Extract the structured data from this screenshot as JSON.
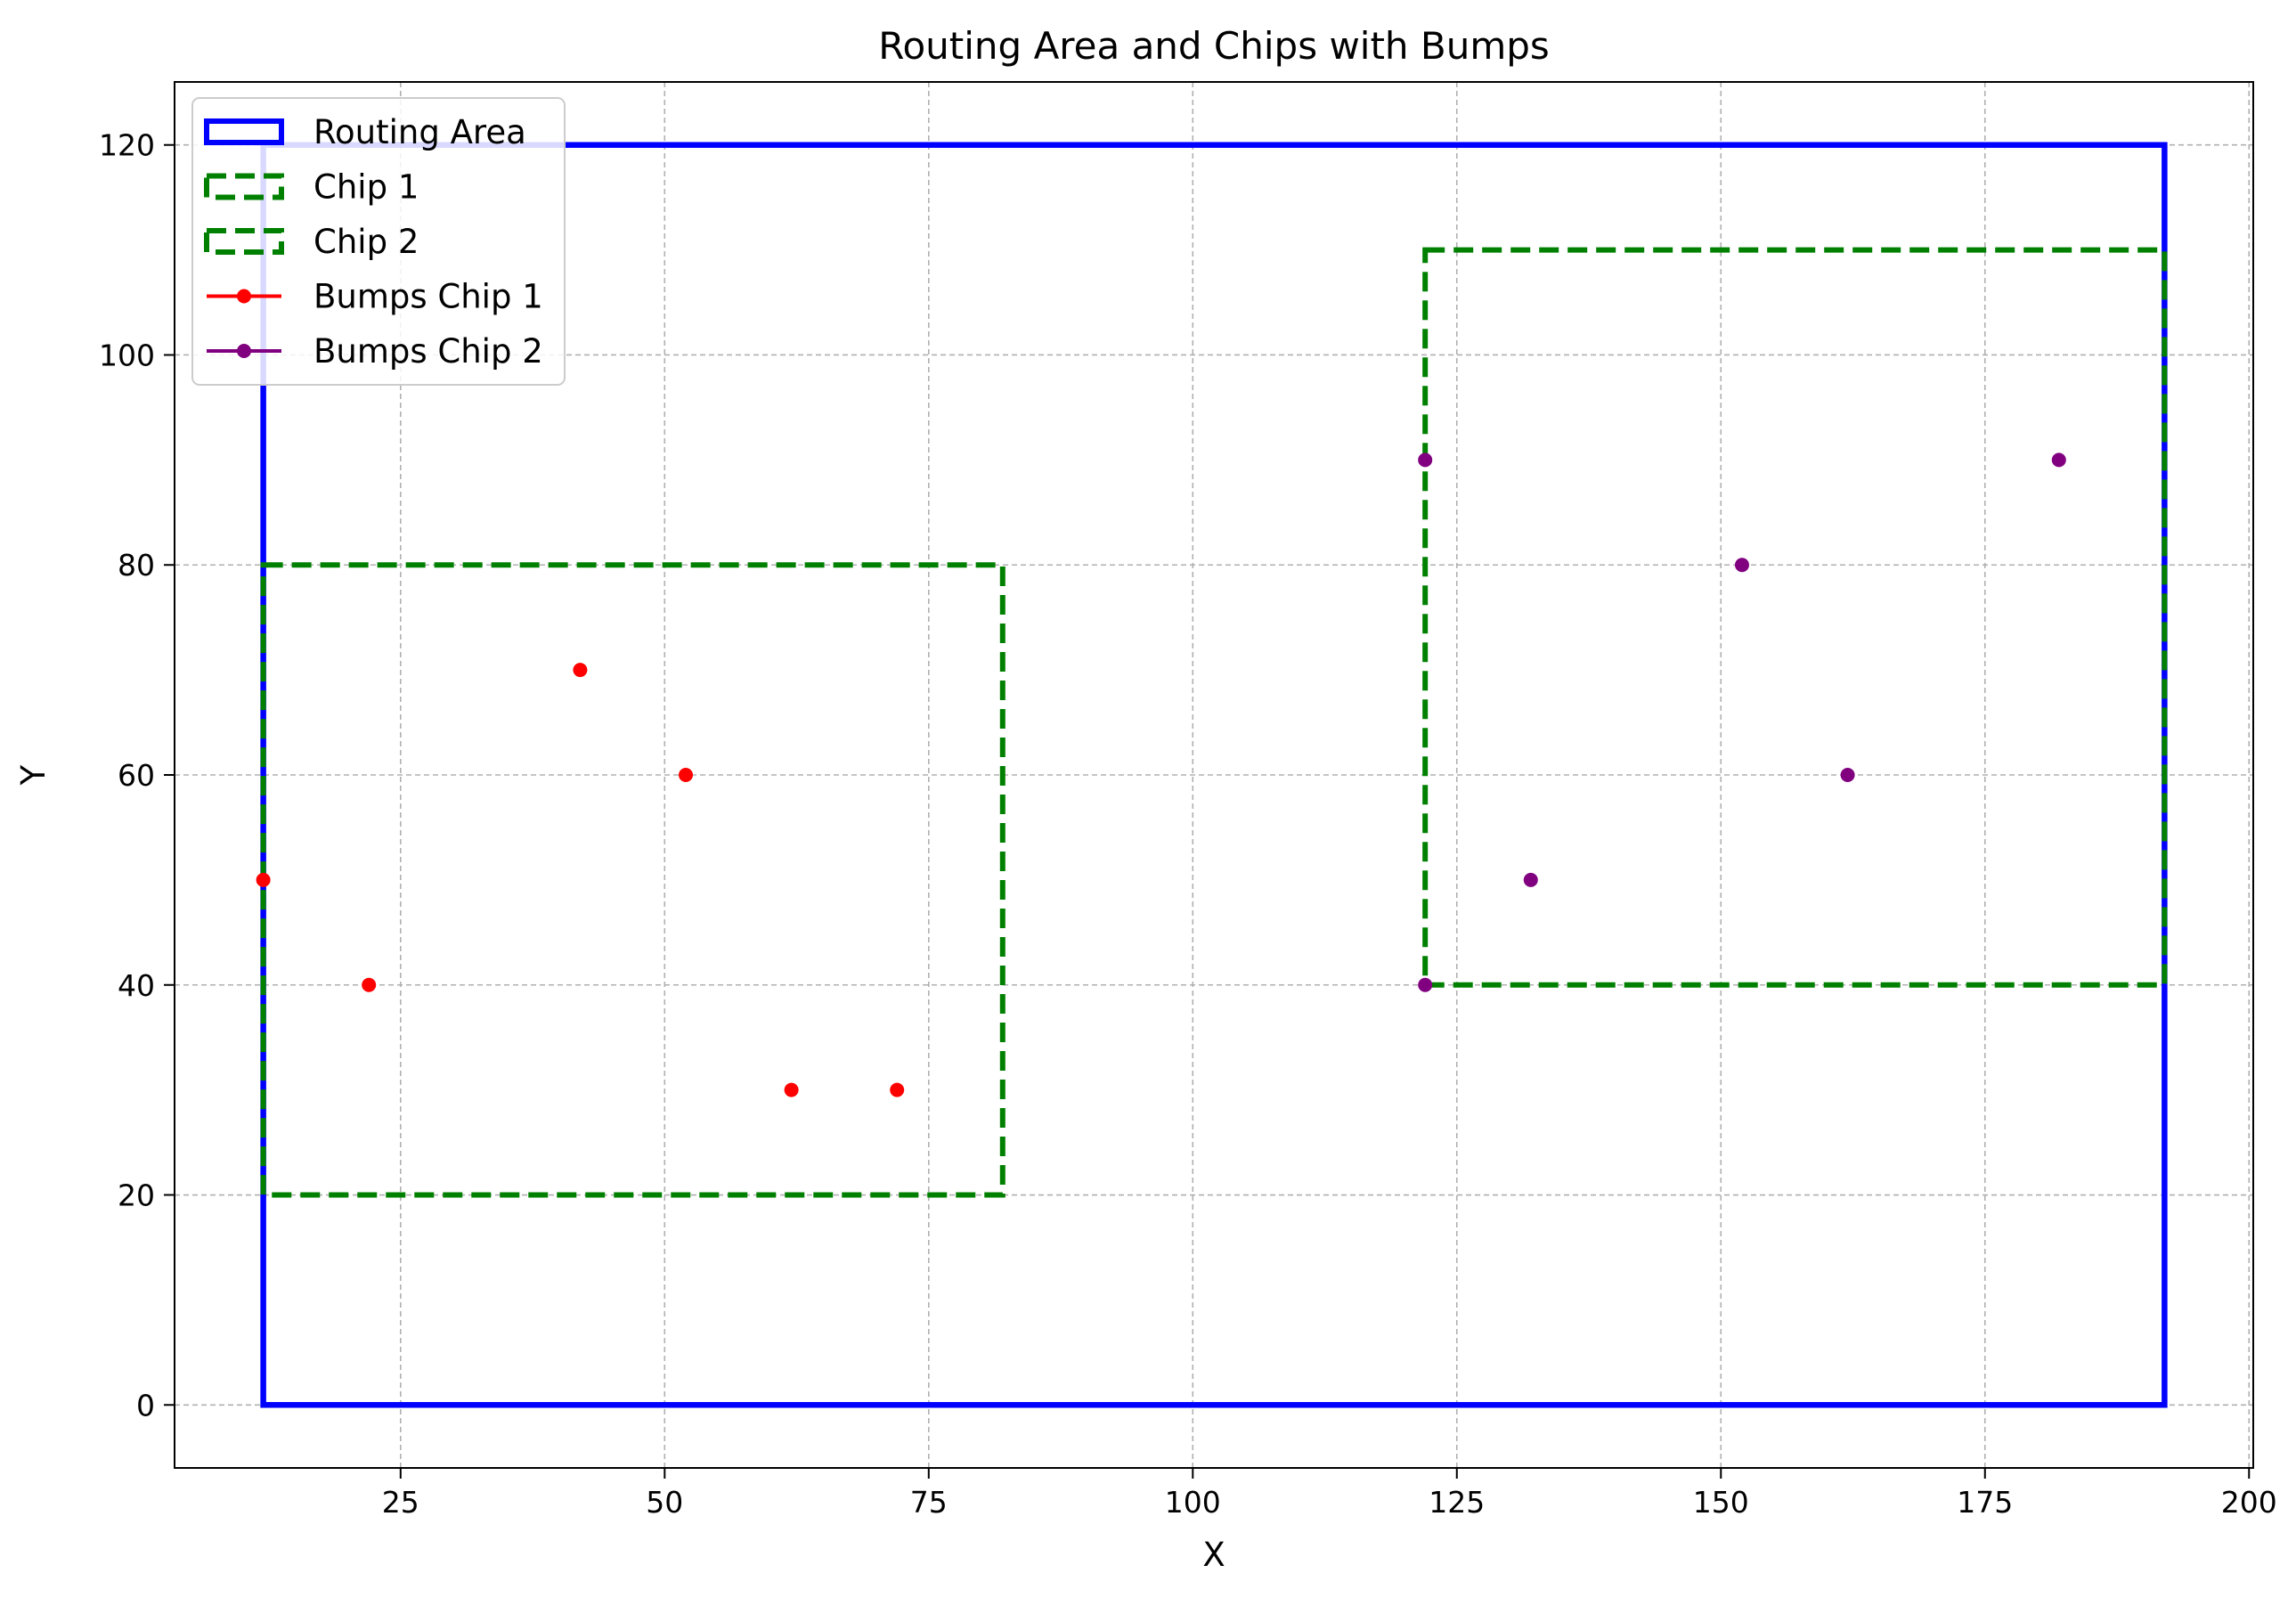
{
  "chart_data": {
    "type": "scatter",
    "title": "Routing Area and Chips with Bumps",
    "xlabel": "X",
    "ylabel": "Y",
    "xlim": [
      3.6,
      200.4
    ],
    "ylim": [
      -6,
      126
    ],
    "xticks": [
      25,
      50,
      75,
      100,
      125,
      150,
      175,
      200
    ],
    "yticks": [
      0,
      20,
      40,
      60,
      80,
      100,
      120
    ],
    "xtick_labels": [
      "25",
      "50",
      "75",
      "100",
      "125",
      "150",
      "175",
      "200"
    ],
    "ytick_labels": [
      "0",
      "20",
      "40",
      "60",
      "80",
      "100",
      "120"
    ],
    "grid": true,
    "legend_position": "top-left",
    "rectangles": [
      {
        "name": "Routing Area",
        "x": 12,
        "y": 0,
        "width": 180,
        "height": 120,
        "color": "#0000ff",
        "style": "solid"
      },
      {
        "name": "Chip 1",
        "x": 12,
        "y": 20,
        "width": 70,
        "height": 60,
        "color": "#008000",
        "style": "dashed"
      },
      {
        "name": "Chip 2",
        "x": 122,
        "y": 40,
        "width": 70,
        "height": 70,
        "color": "#008000",
        "style": "dashed"
      }
    ],
    "series": [
      {
        "name": "Bumps Chip 1",
        "color": "#ff0000",
        "points": [
          [
            12,
            50
          ],
          [
            22,
            40
          ],
          [
            42,
            70
          ],
          [
            52,
            60
          ],
          [
            62,
            30
          ],
          [
            72,
            30
          ]
        ]
      },
      {
        "name": "Bumps Chip 2",
        "color": "#800080",
        "points": [
          [
            122,
            40
          ],
          [
            122,
            90
          ],
          [
            132,
            50
          ],
          [
            152,
            80
          ],
          [
            162,
            60
          ],
          [
            182,
            90
          ]
        ]
      }
    ],
    "legend": [
      {
        "label": "Routing Area",
        "kind": "rect-solid",
        "color": "#0000ff"
      },
      {
        "label": "Chip 1",
        "kind": "rect-dashed",
        "color": "#008000"
      },
      {
        "label": "Chip 2",
        "kind": "rect-dashed",
        "color": "#008000"
      },
      {
        "label": "Bumps Chip 1",
        "kind": "line-marker",
        "color": "#ff0000"
      },
      {
        "label": "Bumps Chip 2",
        "kind": "line-marker",
        "color": "#800080"
      }
    ]
  }
}
